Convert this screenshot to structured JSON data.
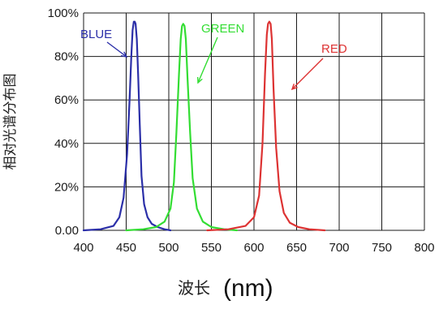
{
  "chart_data": {
    "type": "line",
    "title": "",
    "ylabel": "相对光谱分布图",
    "xlabel_text": "波长",
    "xlabel_unit": "(nm)",
    "xlim": [
      400,
      800
    ],
    "ylim": [
      0,
      100
    ],
    "x_ticks": [
      400,
      450,
      500,
      550,
      600,
      650,
      700,
      750,
      800
    ],
    "x_tick_labels": [
      "400",
      "450",
      "500",
      "550",
      "600",
      "650",
      "700",
      "750",
      "800"
    ],
    "y_ticks": [
      0,
      20,
      40,
      60,
      80,
      100
    ],
    "y_tick_labels": [
      "0.00",
      "20%",
      "40%",
      "60%",
      "80%",
      "100%"
    ],
    "grid": true,
    "series": [
      {
        "name": "BLUE",
        "color": "#2b2fa8",
        "x": [
          400,
          420,
          435,
          442,
          447,
          451,
          454,
          456,
          457.5,
          459,
          460,
          461,
          462.5,
          464,
          466,
          468,
          471,
          475,
          480,
          487,
          495,
          502
        ],
        "y": [
          0,
          0.5,
          2,
          6,
          15,
          35,
          60,
          80,
          92,
          96,
          96,
          95,
          88,
          72,
          48,
          25,
          12,
          6,
          3,
          1.5,
          0.5,
          0
        ]
      },
      {
        "name": "GREEN",
        "color": "#33dd33",
        "x": [
          450,
          470,
          485,
          495,
          502,
          506,
          509,
          512,
          514,
          515.5,
          517,
          518.5,
          520,
          522,
          525,
          528,
          533,
          540,
          550,
          565,
          580
        ],
        "y": [
          0,
          0.5,
          1.5,
          4,
          10,
          22,
          45,
          72,
          88,
          94,
          95,
          94,
          88,
          70,
          45,
          24,
          10,
          4,
          1.5,
          0.5,
          0
        ]
      },
      {
        "name": "RED",
        "color": "#dd3333",
        "x": [
          545,
          570,
          590,
          600,
          606,
          610,
          613,
          615,
          616.5,
          618,
          619.5,
          621,
          623,
          626,
          630,
          635,
          642,
          652,
          665,
          683
        ],
        "y": [
          0,
          0.5,
          2,
          6,
          16,
          40,
          72,
          90,
          95,
          96,
          95,
          88,
          65,
          38,
          18,
          8,
          3.5,
          1.5,
          0.5,
          0
        ]
      }
    ]
  },
  "annotations": [
    {
      "text": "BLUE",
      "color": "#2b2fa8"
    },
    {
      "text": "GREEN",
      "color": "#33dd33"
    },
    {
      "text": "RED",
      "color": "#dd3333"
    }
  ]
}
